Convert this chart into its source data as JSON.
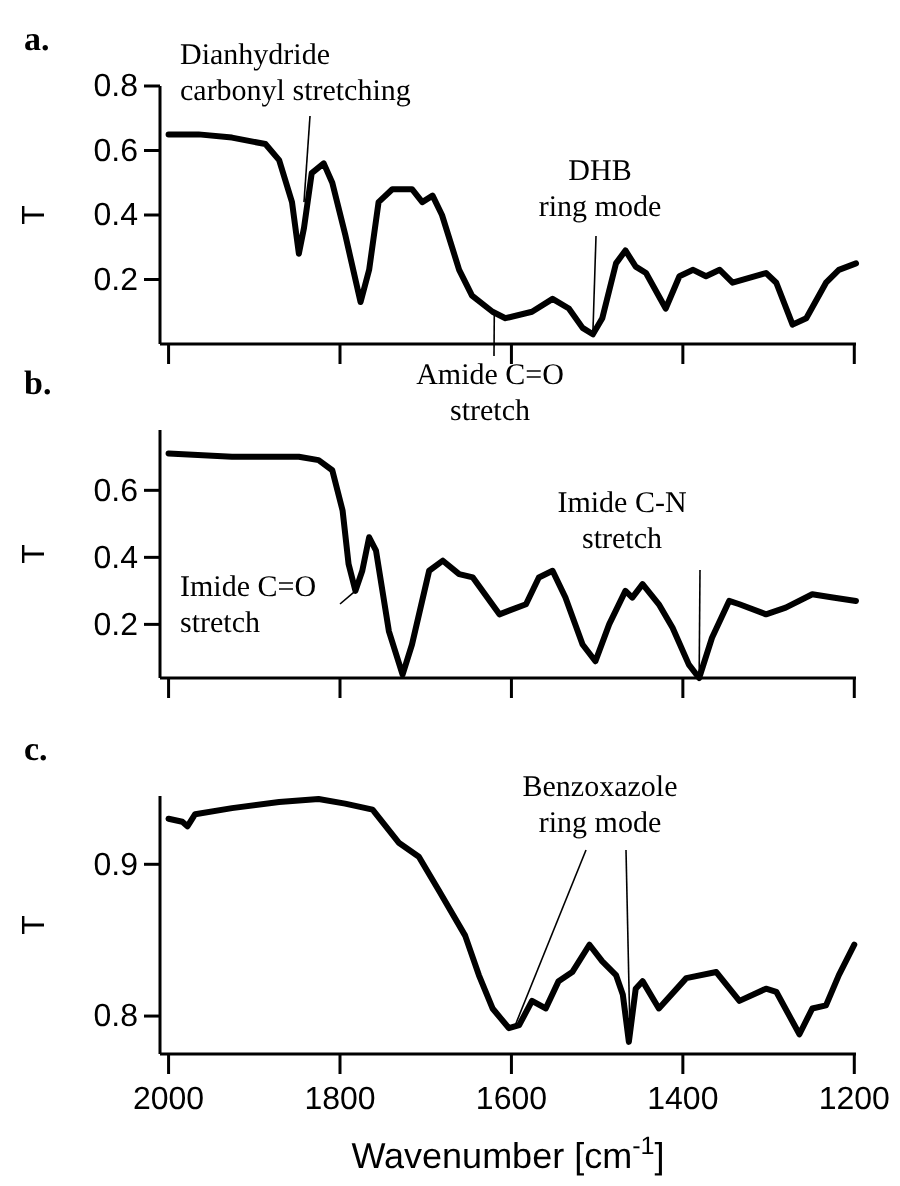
{
  "chart_data": [
    {
      "type": "line",
      "title": "a.",
      "ylabel": "T",
      "xlim": [
        2010,
        1198
      ],
      "xticks": [
        {
          "value": 2000,
          "label": null
        },
        {
          "value": 1800,
          "label": null
        },
        {
          "value": 1600,
          "label": null
        },
        {
          "value": 1400,
          "label": null
        },
        {
          "value": 1200,
          "label": null
        }
      ],
      "ylim": [
        0,
        0.8
      ],
      "yticks": [
        0.2,
        0.4,
        0.6,
        0.8
      ],
      "tick_labels": "y",
      "grid": false,
      "x": [
        2000,
        1965,
        1926,
        1887,
        1871,
        1856,
        1848,
        1842,
        1833,
        1819,
        1809,
        1794,
        1776,
        1766,
        1755,
        1739,
        1716,
        1704,
        1692,
        1681,
        1661,
        1646,
        1622,
        1607,
        1576,
        1552,
        1533,
        1517,
        1505,
        1494,
        1478,
        1467,
        1455,
        1443,
        1420,
        1404,
        1388,
        1373,
        1357,
        1342,
        1303,
        1291,
        1272,
        1256,
        1233,
        1218,
        1198
      ],
      "series": [
        {
          "color": "#000000",
          "values": [
            0.65,
            0.65,
            0.64,
            0.62,
            0.57,
            0.44,
            0.28,
            0.36,
            0.53,
            0.56,
            0.5,
            0.34,
            0.13,
            0.23,
            0.44,
            0.48,
            0.48,
            0.44,
            0.46,
            0.4,
            0.23,
            0.15,
            0.1,
            0.08,
            0.1,
            0.14,
            0.11,
            0.05,
            0.03,
            0.08,
            0.25,
            0.29,
            0.24,
            0.22,
            0.11,
            0.21,
            0.23,
            0.21,
            0.23,
            0.19,
            0.22,
            0.19,
            0.06,
            0.08,
            0.19,
            0.23,
            0.25
          ]
        }
      ],
      "annotations": [
        {
          "text": "Dianhydride carbonyl stretching",
          "x": 1842,
          "y": 0.44
        },
        {
          "text": "Amide C=O stretch",
          "x": 1620,
          "y": 0.09
        },
        {
          "text": "DHB ring mode",
          "x": 1505,
          "y": 0.03
        }
      ]
    },
    {
      "type": "line",
      "title": "b.",
      "ylabel": "T",
      "xlim": [
        2010,
        1198
      ],
      "xticks": [
        {
          "value": 2000,
          "label": null
        },
        {
          "value": 1800,
          "label": null
        },
        {
          "value": 1600,
          "label": null
        },
        {
          "value": 1400,
          "label": null
        },
        {
          "value": 1200,
          "label": null
        }
      ],
      "ylim": [
        0.04,
        0.78
      ],
      "yticks": [
        0.2,
        0.4,
        0.6
      ],
      "tick_labels": "y",
      "grid": false,
      "x": [
        2000,
        1926,
        1848,
        1825,
        1809,
        1797,
        1790,
        1782,
        1774,
        1766,
        1758,
        1743,
        1727,
        1716,
        1696,
        1680,
        1661,
        1645,
        1614,
        1583,
        1568,
        1552,
        1537,
        1517,
        1502,
        1486,
        1467,
        1459,
        1447,
        1428,
        1412,
        1393,
        1381,
        1366,
        1346,
        1334,
        1303,
        1280,
        1249,
        1225,
        1198
      ],
      "series": [
        {
          "color": "#000000",
          "values": [
            0.71,
            0.7,
            0.7,
            0.69,
            0.66,
            0.54,
            0.38,
            0.3,
            0.36,
            0.46,
            0.42,
            0.18,
            0.05,
            0.14,
            0.36,
            0.39,
            0.35,
            0.34,
            0.23,
            0.26,
            0.34,
            0.36,
            0.28,
            0.14,
            0.09,
            0.2,
            0.3,
            0.28,
            0.32,
            0.26,
            0.19,
            0.08,
            0.04,
            0.16,
            0.27,
            0.26,
            0.23,
            0.25,
            0.29,
            0.28,
            0.27
          ]
        }
      ],
      "annotations": [
        {
          "text": "Imide C=O stretch",
          "x": 1782,
          "y": 0.3
        },
        {
          "text": "Imide C-N stretch",
          "x": 1381,
          "y": 0.04
        }
      ]
    },
    {
      "type": "line",
      "title": "c.",
      "ylabel": "T",
      "xlabel": "Wavenumber [cm$^{-1}$]",
      "xlim": [
        2010,
        1198
      ],
      "xticks": [
        2000,
        1800,
        1600,
        1400,
        1200
      ],
      "ylim": [
        0.775,
        0.945
      ],
      "yticks": [
        0.8,
        0.9
      ],
      "grid": false,
      "x": [
        2000,
        1984,
        1978,
        1969,
        1926,
        1871,
        1825,
        1794,
        1762,
        1731,
        1708,
        1685,
        1654,
        1638,
        1622,
        1603,
        1591,
        1576,
        1560,
        1545,
        1529,
        1509,
        1494,
        1478,
        1470,
        1463,
        1455,
        1447,
        1428,
        1396,
        1361,
        1334,
        1303,
        1291,
        1264,
        1249,
        1233,
        1218,
        1200
      ],
      "series": [
        {
          "color": "#000000",
          "values": [
            0.93,
            0.928,
            0.925,
            0.933,
            0.937,
            0.941,
            0.943,
            0.94,
            0.936,
            0.914,
            0.905,
            0.883,
            0.853,
            0.827,
            0.805,
            0.792,
            0.794,
            0.81,
            0.805,
            0.823,
            0.829,
            0.847,
            0.836,
            0.827,
            0.814,
            0.783,
            0.818,
            0.823,
            0.805,
            0.825,
            0.829,
            0.81,
            0.818,
            0.816,
            0.788,
            0.805,
            0.807,
            0.827,
            0.847
          ]
        }
      ],
      "annotations": [
        {
          "text": "Benzoxazole ring mode",
          "x": 1597,
          "y": 0.792
        }
      ]
    }
  ]
}
